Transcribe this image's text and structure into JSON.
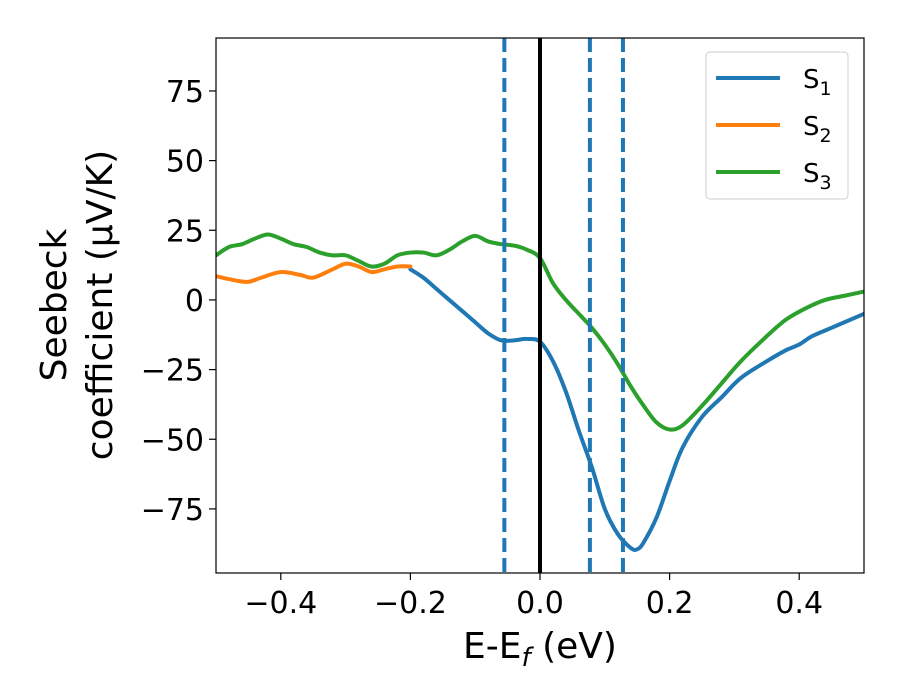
{
  "chart_data": {
    "type": "line",
    "xlabel": {
      "main": "E-E",
      "sub": "f",
      "tail": " (eV)"
    },
    "ylabel_lines": [
      "Seebeck",
      "coefficient  (μV/K)"
    ],
    "xlim": [
      -0.5,
      0.5
    ],
    "ylim": [
      -98,
      94
    ],
    "xticks": [
      -0.4,
      -0.2,
      0.0,
      0.2,
      0.4
    ],
    "xtick_labels": [
      "−0.4",
      "−0.2",
      "0.0",
      "0.2",
      "0.4"
    ],
    "yticks": [
      75,
      50,
      25,
      0,
      -25,
      -50,
      -75
    ],
    "ytick_labels": [
      "75",
      "50",
      "25",
      "0",
      "−25",
      "−50",
      "−75"
    ],
    "grid": false,
    "legend_position": "top-right",
    "vlines": [
      {
        "x": 0.0,
        "style": "solid",
        "color": "#000000"
      },
      {
        "x": -0.055,
        "style": "dashed",
        "color": "#1f77b4"
      },
      {
        "x": 0.077,
        "style": "dashed",
        "color": "#1f77b4"
      },
      {
        "x": 0.128,
        "style": "dashed",
        "color": "#1f77b4"
      }
    ],
    "series": [
      {
        "name": "S",
        "sub": "1",
        "color": "#1f77b4",
        "x": [
          -0.2,
          -0.18,
          -0.16,
          -0.14,
          -0.12,
          -0.1,
          -0.08,
          -0.06,
          -0.04,
          -0.02,
          0.0,
          0.02,
          0.04,
          0.06,
          0.08,
          0.1,
          0.12,
          0.14,
          0.15,
          0.16,
          0.18,
          0.2,
          0.22,
          0.25,
          0.28,
          0.31,
          0.35,
          0.38,
          0.4,
          0.42,
          0.45,
          0.48,
          0.5
        ],
        "y": [
          11,
          8,
          4,
          0,
          -4,
          -8,
          -12,
          -14.5,
          -14.5,
          -14,
          -15,
          -22,
          -33,
          -47,
          -60,
          -75,
          -84,
          -89,
          -89.5,
          -87,
          -78,
          -65,
          -53,
          -42,
          -35,
          -28,
          -22,
          -18,
          -16,
          -13,
          -10,
          -7,
          -5
        ]
      },
      {
        "name": "S",
        "sub": "2",
        "color": "#ff7f0e",
        "x": [
          -0.5,
          -0.47,
          -0.45,
          -0.43,
          -0.4,
          -0.37,
          -0.35,
          -0.32,
          -0.3,
          -0.28,
          -0.26,
          -0.24,
          -0.22,
          -0.2
        ],
        "y": [
          8.5,
          7,
          6.5,
          8,
          10,
          9,
          8,
          11,
          13,
          12,
          10,
          11,
          12,
          12
        ]
      },
      {
        "name": "S",
        "sub": "3",
        "color": "#2ca02c",
        "x": [
          -0.5,
          -0.48,
          -0.46,
          -0.44,
          -0.42,
          -0.4,
          -0.38,
          -0.36,
          -0.34,
          -0.32,
          -0.3,
          -0.28,
          -0.26,
          -0.24,
          -0.22,
          -0.2,
          -0.18,
          -0.16,
          -0.14,
          -0.12,
          -0.1,
          -0.08,
          -0.06,
          -0.04,
          -0.02,
          0.0,
          0.02,
          0.04,
          0.06,
          0.08,
          0.1,
          0.12,
          0.14,
          0.16,
          0.18,
          0.2,
          0.22,
          0.25,
          0.28,
          0.31,
          0.35,
          0.38,
          0.41,
          0.44,
          0.47,
          0.5
        ],
        "y": [
          16,
          19,
          20,
          22,
          23.5,
          22,
          20,
          19,
          17,
          16,
          16,
          14,
          12,
          13,
          16,
          17,
          17,
          16,
          18,
          21,
          23,
          21,
          20,
          19.5,
          18,
          15,
          6,
          0,
          -5,
          -10,
          -16,
          -23,
          -31,
          -38,
          -44,
          -46.5,
          -45,
          -38,
          -30,
          -22,
          -13,
          -7,
          -3,
          0,
          1.5,
          3
        ]
      }
    ]
  }
}
